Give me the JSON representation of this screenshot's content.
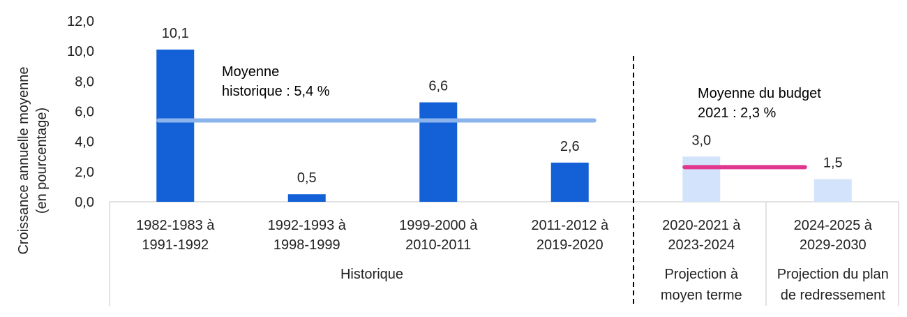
{
  "chart_data": {
    "type": "bar",
    "ylabel": [
      "Croissance annuelle moyenne",
      "(en pourcentage)"
    ],
    "ylim": [
      0,
      12
    ],
    "yticks": [
      "0,0",
      "2,0",
      "4,0",
      "6,0",
      "8,0",
      "10,0",
      "12,0"
    ],
    "grid": false,
    "categories": [
      [
        "1982-1983 à",
        "1991-1992"
      ],
      [
        "1992-1993 à",
        "1998-1999"
      ],
      [
        "1999-2000 à",
        "2010-2011"
      ],
      [
        "2011-2012 à",
        "2019-2020"
      ],
      [
        "2020-2021 à",
        "2023-2024"
      ],
      [
        "2024-2025 à",
        "2029-2030"
      ]
    ],
    "values": [
      10.1,
      0.5,
      6.6,
      2.6,
      3.0,
      1.5
    ],
    "data_labels": [
      "10,1",
      "0,5",
      "6,6",
      "2,6",
      "3,0",
      "1,5"
    ],
    "bar_colors": [
      "#1460d6",
      "#1460d6",
      "#1460d6",
      "#1460d6",
      "#d3e3fb",
      "#d3e3fb"
    ],
    "groups": [
      {
        "label": [
          "Historique"
        ]
      },
      {
        "label": [
          "Projection à",
          "moyen terme"
        ]
      },
      {
        "label": [
          "Projection du plan",
          "de redressement"
        ]
      }
    ],
    "reference_lines": [
      {
        "value": 5.4,
        "from_category": 0,
        "to_category": 3,
        "color": "#8cb4ec",
        "label": [
          "Moyenne",
          "historique : 5,4 %"
        ]
      },
      {
        "value": 2.3,
        "from_category": 4,
        "to_category": 5,
        "color": "#e0368e",
        "label": [
          "Moyenne du budget",
          "2021 : 2,3 %"
        ]
      }
    ]
  }
}
